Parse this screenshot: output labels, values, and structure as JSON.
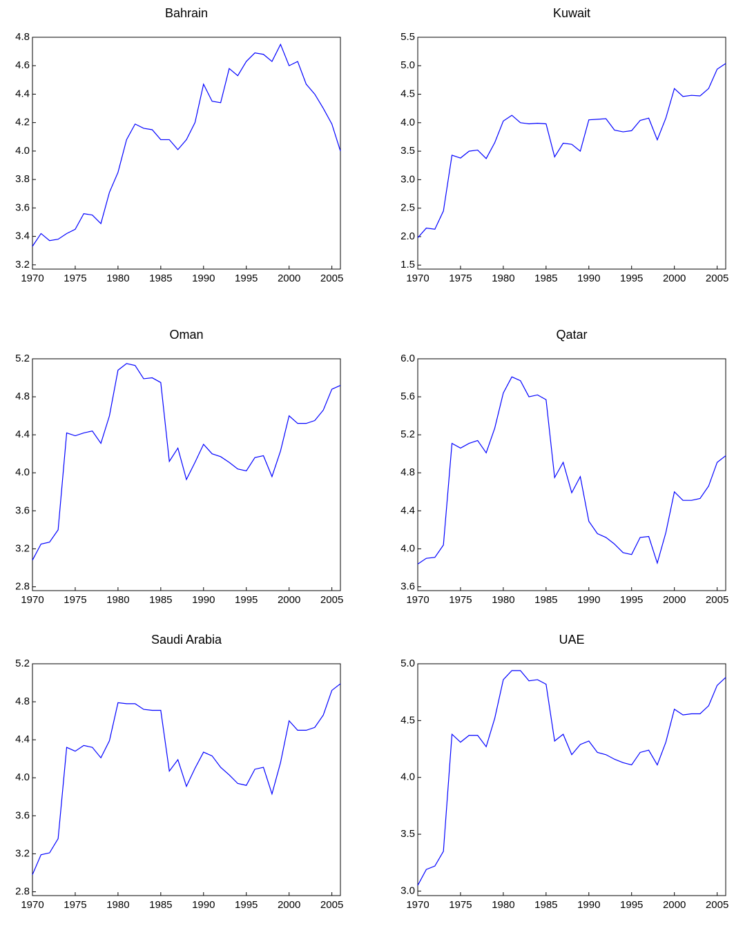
{
  "chart_data": [
    {
      "type": "line",
      "title": "Bahrain",
      "color": "#0000ff",
      "x": [
        1970,
        1971,
        1972,
        1973,
        1974,
        1975,
        1976,
        1977,
        1978,
        1979,
        1980,
        1981,
        1982,
        1983,
        1984,
        1985,
        1986,
        1987,
        1988,
        1989,
        1990,
        1991,
        1992,
        1993,
        1994,
        1995,
        1996,
        1997,
        1998,
        1999,
        2000,
        2001,
        2002,
        2003,
        2004,
        2005,
        2006
      ],
      "values": [
        3.33,
        3.42,
        3.37,
        3.38,
        3.42,
        3.45,
        3.56,
        3.55,
        3.49,
        3.71,
        3.85,
        4.08,
        4.19,
        4.16,
        4.15,
        4.08,
        4.08,
        4.01,
        4.08,
        4.2,
        4.47,
        4.35,
        4.34,
        4.58,
        4.53,
        4.63,
        4.69,
        4.68,
        4.63,
        4.75,
        4.6,
        4.63,
        4.47,
        4.4,
        4.3,
        4.19,
        4.0
      ],
      "xlim": [
        1970,
        2006
      ],
      "xticks": [
        1970,
        1975,
        1980,
        1985,
        1990,
        1995,
        2000,
        2005
      ],
      "ylim": [
        3.17,
        4.8
      ],
      "yticks": [
        3.2,
        3.4,
        3.6,
        3.8,
        {
          "value": 4,
          "label": "4.0"
        },
        4.2,
        4.4,
        4.6,
        4.8
      ]
    },
    {
      "type": "line",
      "title": "Kuwait",
      "color": "#0000ff",
      "x": [
        1970,
        1971,
        1972,
        1973,
        1974,
        1975,
        1976,
        1977,
        1978,
        1979,
        1980,
        1981,
        1982,
        1983,
        1984,
        1985,
        1986,
        1987,
        1988,
        1989,
        1990,
        1991,
        1992,
        1993,
        1994,
        1995,
        1996,
        1997,
        1998,
        1999,
        2000,
        2001,
        2002,
        2003,
        2004,
        2005,
        2006
      ],
      "values": [
        1.98,
        2.15,
        2.13,
        2.45,
        3.43,
        3.38,
        3.5,
        3.52,
        3.37,
        3.65,
        4.03,
        4.13,
        4.0,
        3.98,
        3.99,
        3.98,
        3.4,
        3.64,
        3.62,
        3.5,
        4.05,
        4.06,
        4.07,
        3.87,
        3.84,
        3.86,
        4.04,
        4.08,
        3.7,
        4.08,
        4.6,
        4.46,
        4.48,
        4.47,
        4.6,
        4.94,
        5.04
      ],
      "xlim": [
        1970,
        2006
      ],
      "xticks": [
        1970,
        1975,
        1980,
        1985,
        1990,
        1995,
        2000,
        2005
      ],
      "ylim": [
        1.43,
        5.5
      ],
      "yticks": [
        1.5,
        {
          "value": 2,
          "label": "2.0"
        },
        2.5,
        {
          "value": 3,
          "label": "3.0"
        },
        3.5,
        {
          "value": 4,
          "label": "4.0"
        },
        4.5,
        {
          "value": 5,
          "label": "5.0"
        },
        5.5
      ]
    },
    {
      "type": "line",
      "title": "Oman",
      "color": "#0000ff",
      "x": [
        1970,
        1971,
        1972,
        1973,
        1974,
        1975,
        1976,
        1977,
        1978,
        1979,
        1980,
        1981,
        1982,
        1983,
        1984,
        1985,
        1986,
        1987,
        1988,
        1989,
        1990,
        1991,
        1992,
        1993,
        1994,
        1995,
        1996,
        1997,
        1998,
        1999,
        2000,
        2001,
        2002,
        2003,
        2004,
        2005,
        2006
      ],
      "values": [
        3.08,
        3.25,
        3.27,
        3.4,
        4.42,
        4.39,
        4.42,
        4.44,
        4.31,
        4.6,
        5.08,
        5.15,
        5.13,
        4.99,
        5.0,
        4.95,
        4.12,
        4.26,
        3.93,
        4.11,
        4.3,
        4.2,
        4.17,
        4.11,
        4.04,
        4.02,
        4.16,
        4.18,
        3.96,
        4.23,
        4.6,
        4.52,
        4.52,
        4.55,
        4.66,
        4.88,
        4.92
      ],
      "xlim": [
        1970,
        2006
      ],
      "xticks": [
        1970,
        1975,
        1980,
        1985,
        1990,
        1995,
        2000,
        2005
      ],
      "ylim": [
        2.76,
        5.2
      ],
      "yticks": [
        2.8,
        3.2,
        3.6,
        {
          "value": 4,
          "label": "4.0"
        },
        4.4,
        4.8,
        5.2
      ]
    },
    {
      "type": "line",
      "title": "Qatar",
      "color": "#0000ff",
      "x": [
        1970,
        1971,
        1972,
        1973,
        1974,
        1975,
        1976,
        1977,
        1978,
        1979,
        1980,
        1981,
        1982,
        1983,
        1984,
        1985,
        1986,
        1987,
        1988,
        1989,
        1990,
        1991,
        1992,
        1993,
        1994,
        1995,
        1996,
        1997,
        1998,
        1999,
        2000,
        2001,
        2002,
        2003,
        2004,
        2005,
        2006
      ],
      "values": [
        3.84,
        3.9,
        3.91,
        4.04,
        5.11,
        5.06,
        5.11,
        5.14,
        5.01,
        5.27,
        5.64,
        5.81,
        5.77,
        5.6,
        5.62,
        5.57,
        4.75,
        4.91,
        4.59,
        4.76,
        4.29,
        4.16,
        4.12,
        4.05,
        3.96,
        3.94,
        4.12,
        4.13,
        3.85,
        4.17,
        4.6,
        4.51,
        4.51,
        4.53,
        4.66,
        4.91,
        4.98
      ],
      "xlim": [
        1970,
        2006
      ],
      "xticks": [
        1970,
        1975,
        1980,
        1985,
        1990,
        1995,
        2000,
        2005
      ],
      "ylim": [
        3.56,
        6.0
      ],
      "yticks": [
        3.6,
        {
          "value": 4,
          "label": "4.0"
        },
        4.4,
        4.8,
        5.2,
        5.6,
        {
          "value": 6,
          "label": "6.0"
        }
      ]
    },
    {
      "type": "line",
      "title": "Saudi Arabia",
      "color": "#0000ff",
      "x": [
        1970,
        1971,
        1972,
        1973,
        1974,
        1975,
        1976,
        1977,
        1978,
        1979,
        1980,
        1981,
        1982,
        1983,
        1984,
        1985,
        1986,
        1987,
        1988,
        1989,
        1990,
        1991,
        1992,
        1993,
        1994,
        1995,
        1996,
        1997,
        1998,
        1999,
        2000,
        2001,
        2002,
        2003,
        2004,
        2005,
        2006
      ],
      "values": [
        2.98,
        3.19,
        3.21,
        3.36,
        4.32,
        4.28,
        4.34,
        4.32,
        4.21,
        4.39,
        4.79,
        4.78,
        4.78,
        4.72,
        4.71,
        4.71,
        4.07,
        4.19,
        3.91,
        4.1,
        4.27,
        4.23,
        4.11,
        4.03,
        3.94,
        3.92,
        4.09,
        4.11,
        3.83,
        4.16,
        4.6,
        4.5,
        4.5,
        4.53,
        4.66,
        4.92,
        4.99
      ],
      "xlim": [
        1970,
        2006
      ],
      "xticks": [
        1970,
        1975,
        1980,
        1985,
        1990,
        1995,
        2000,
        2005
      ],
      "ylim": [
        2.76,
        5.2
      ],
      "yticks": [
        2.8,
        3.2,
        3.6,
        {
          "value": 4,
          "label": "4.0"
        },
        4.4,
        4.8,
        5.2
      ]
    },
    {
      "type": "line",
      "title": "UAE",
      "color": "#0000ff",
      "x": [
        1970,
        1971,
        1972,
        1973,
        1974,
        1975,
        1976,
        1977,
        1978,
        1979,
        1980,
        1981,
        1982,
        1983,
        1984,
        1985,
        1986,
        1987,
        1988,
        1989,
        1990,
        1991,
        1992,
        1993,
        1994,
        1995,
        1996,
        1997,
        1998,
        1999,
        2000,
        2001,
        2002,
        2003,
        2004,
        2005,
        2006
      ],
      "values": [
        3.05,
        3.19,
        3.22,
        3.35,
        4.38,
        4.31,
        4.37,
        4.37,
        4.27,
        4.52,
        4.86,
        4.94,
        4.94,
        4.85,
        4.86,
        4.82,
        4.32,
        4.38,
        4.2,
        4.29,
        4.32,
        4.22,
        4.2,
        4.16,
        4.13,
        4.11,
        4.22,
        4.24,
        4.11,
        4.31,
        4.6,
        4.55,
        4.56,
        4.56,
        4.63,
        4.81,
        4.88
      ],
      "xlim": [
        1970,
        2006
      ],
      "xticks": [
        1970,
        1975,
        1980,
        1985,
        1990,
        1995,
        2000,
        2005
      ],
      "ylim": [
        2.96,
        5.0
      ],
      "yticks": [
        {
          "value": 3,
          "label": "3.0"
        },
        3.5,
        {
          "value": 4,
          "label": "4.0"
        },
        4.5,
        {
          "value": 5,
          "label": "5.0"
        }
      ]
    }
  ]
}
